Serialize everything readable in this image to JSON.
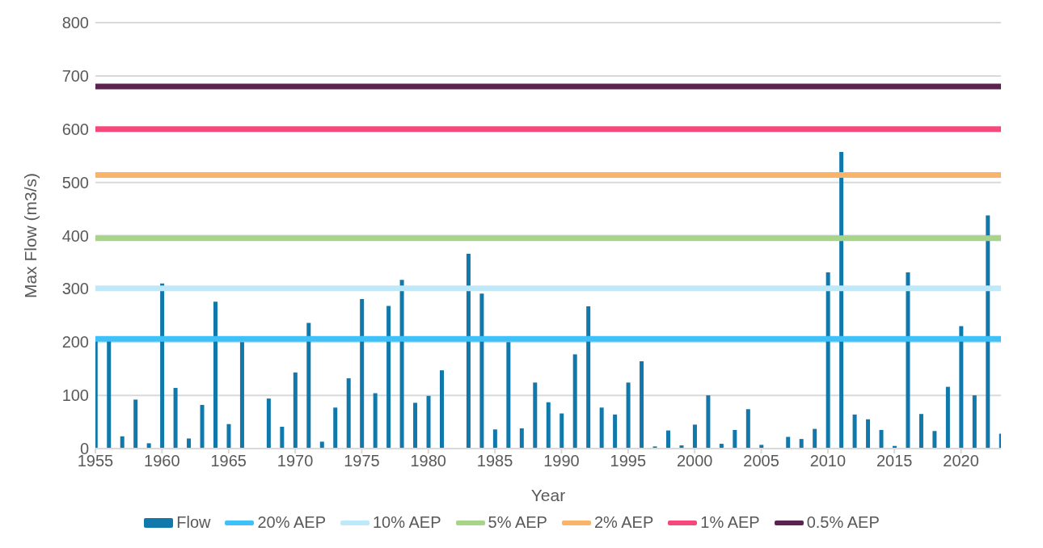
{
  "chart_data": {
    "type": "bar",
    "xlabel": "Year",
    "ylabel": "Max Flow (m3/s)",
    "x": [
      1955,
      1956,
      1957,
      1958,
      1959,
      1960,
      1961,
      1962,
      1963,
      1964,
      1965,
      1966,
      1967,
      1968,
      1969,
      1970,
      1971,
      1972,
      1973,
      1974,
      1975,
      1976,
      1977,
      1978,
      1979,
      1980,
      1981,
      1982,
      1983,
      1984,
      1985,
      1986,
      1987,
      1988,
      1989,
      1990,
      1991,
      1992,
      1993,
      1994,
      1995,
      1996,
      1997,
      1998,
      1999,
      2000,
      2001,
      2002,
      2003,
      2004,
      2005,
      2006,
      2007,
      2008,
      2009,
      2010,
      2011,
      2012,
      2013,
      2014,
      2015,
      2016,
      2017,
      2018,
      2019,
      2020,
      2021,
      2022,
      2023
    ],
    "series": [
      {
        "name": "Flow",
        "color": "#1078aa",
        "values": [
          205,
          205,
          23,
          92,
          10,
          310,
          114,
          19,
          82,
          276,
          46,
          200,
          0,
          94,
          41,
          143,
          236,
          13,
          77,
          132,
          281,
          104,
          268,
          317,
          86,
          99,
          147,
          0,
          366,
          291,
          36,
          200,
          38,
          124,
          87,
          66,
          177,
          267,
          77,
          64,
          124,
          164,
          4,
          34,
          6,
          45,
          100,
          9,
          35,
          74,
          7,
          0,
          22,
          18,
          37,
          331,
          557,
          64,
          55,
          35,
          5,
          331,
          65,
          33,
          116,
          230,
          100,
          438,
          28
        ]
      },
      {
        "name": "20% AEP",
        "type": "line",
        "color": "#3ec1f9",
        "values": [
          206,
          206,
          206,
          206,
          206,
          206,
          206,
          206,
          206,
          206,
          206,
          206,
          206,
          206,
          206,
          206,
          206,
          206,
          206,
          206,
          206,
          206,
          206,
          206,
          206,
          206,
          206,
          206,
          206,
          206,
          206,
          206,
          206,
          206,
          206,
          206,
          206,
          206,
          206,
          206,
          206,
          206,
          206,
          206,
          206,
          206,
          206,
          206,
          206,
          206,
          206,
          206,
          206,
          206,
          206,
          206,
          206,
          206,
          206,
          206,
          206,
          206,
          206,
          206,
          206,
          206,
          206,
          206,
          206
        ]
      },
      {
        "name": "10% AEP",
        "type": "line",
        "color": "#bde9fb",
        "values": [
          301,
          301,
          301,
          301,
          301,
          301,
          301,
          301,
          301,
          301,
          301,
          301,
          301,
          301,
          301,
          301,
          301,
          301,
          301,
          301,
          301,
          301,
          301,
          301,
          301,
          301,
          301,
          301,
          301,
          301,
          301,
          301,
          301,
          301,
          301,
          301,
          301,
          301,
          301,
          301,
          301,
          301,
          301,
          301,
          301,
          301,
          301,
          301,
          301,
          301,
          301,
          301,
          301,
          301,
          301,
          301,
          301,
          301,
          301,
          301,
          301,
          301,
          301,
          301,
          301,
          301,
          301,
          301,
          301
        ]
      },
      {
        "name": "5% AEP",
        "type": "line",
        "color": "#a8d48a",
        "values": [
          395,
          395,
          395,
          395,
          395,
          395,
          395,
          395,
          395,
          395,
          395,
          395,
          395,
          395,
          395,
          395,
          395,
          395,
          395,
          395,
          395,
          395,
          395,
          395,
          395,
          395,
          395,
          395,
          395,
          395,
          395,
          395,
          395,
          395,
          395,
          395,
          395,
          395,
          395,
          395,
          395,
          395,
          395,
          395,
          395,
          395,
          395,
          395,
          395,
          395,
          395,
          395,
          395,
          395,
          395,
          395,
          395,
          395,
          395,
          395,
          395,
          395,
          395,
          395,
          395,
          395,
          395,
          395,
          395
        ]
      },
      {
        "name": "2% AEP",
        "type": "line",
        "color": "#f9b46a",
        "values": [
          514,
          514,
          514,
          514,
          514,
          514,
          514,
          514,
          514,
          514,
          514,
          514,
          514,
          514,
          514,
          514,
          514,
          514,
          514,
          514,
          514,
          514,
          514,
          514,
          514,
          514,
          514,
          514,
          514,
          514,
          514,
          514,
          514,
          514,
          514,
          514,
          514,
          514,
          514,
          514,
          514,
          514,
          514,
          514,
          514,
          514,
          514,
          514,
          514,
          514,
          514,
          514,
          514,
          514,
          514,
          514,
          514,
          514,
          514,
          514,
          514,
          514,
          514,
          514,
          514,
          514,
          514,
          514,
          514
        ]
      },
      {
        "name": "1% AEP",
        "type": "line",
        "color": "#f7487b",
        "values": [
          600,
          600,
          600,
          600,
          600,
          600,
          600,
          600,
          600,
          600,
          600,
          600,
          600,
          600,
          600,
          600,
          600,
          600,
          600,
          600,
          600,
          600,
          600,
          600,
          600,
          600,
          600,
          600,
          600,
          600,
          600,
          600,
          600,
          600,
          600,
          600,
          600,
          600,
          600,
          600,
          600,
          600,
          600,
          600,
          600,
          600,
          600,
          600,
          600,
          600,
          600,
          600,
          600,
          600,
          600,
          600,
          600,
          600,
          600,
          600,
          600,
          600,
          600,
          600,
          600,
          600,
          600,
          600,
          600
        ]
      },
      {
        "name": "0.5% AEP",
        "type": "line",
        "color": "#5a2350",
        "values": [
          680,
          680,
          680,
          680,
          680,
          680,
          680,
          680,
          680,
          680,
          680,
          680,
          680,
          680,
          680,
          680,
          680,
          680,
          680,
          680,
          680,
          680,
          680,
          680,
          680,
          680,
          680,
          680,
          680,
          680,
          680,
          680,
          680,
          680,
          680,
          680,
          680,
          680,
          680,
          680,
          680,
          680,
          680,
          680,
          680,
          680,
          680,
          680,
          680,
          680,
          680,
          680,
          680,
          680,
          680,
          680,
          680,
          680,
          680,
          680,
          680,
          680,
          680,
          680,
          680,
          680,
          680,
          680,
          680
        ]
      }
    ],
    "xlim": [
      1955,
      2023
    ],
    "xticks": [
      1955,
      1960,
      1965,
      1970,
      1975,
      1980,
      1985,
      1990,
      1995,
      2000,
      2005,
      2010,
      2015,
      2020
    ],
    "ylim": [
      0,
      800
    ],
    "yticks": [
      0,
      100,
      200,
      300,
      400,
      500,
      600,
      700,
      800
    ],
    "grid": "y",
    "legend": "bottom",
    "marker": "none",
    "line_style": "solid"
  }
}
